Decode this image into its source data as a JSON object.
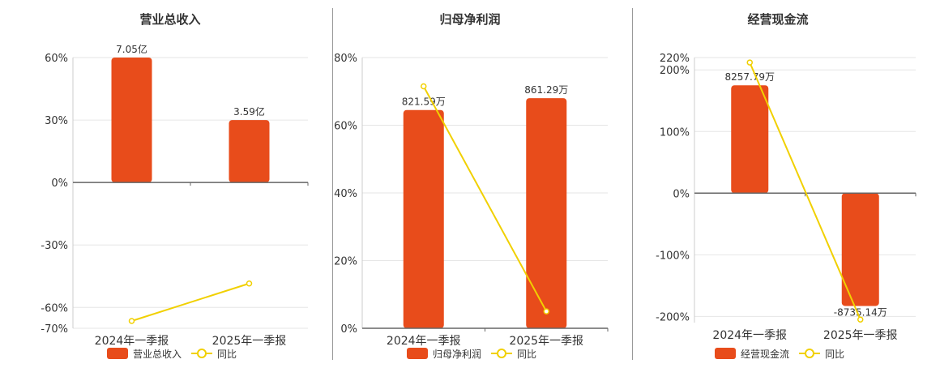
{
  "colors": {
    "bar": "#e84c1b",
    "line": "#f1d000",
    "grid": "#e6e6e6",
    "axis": "#666666",
    "text": "#333333"
  },
  "chart_data": [
    {
      "type": "bar",
      "title": "营业总收入",
      "categories": [
        "2024年一季报",
        "2025年一季报"
      ],
      "ylim": [
        -0.7,
        0.6
      ],
      "yticks": [
        0.6,
        0.3,
        0,
        -0.3,
        -0.6,
        -0.7
      ],
      "ytick_labels": [
        "60%",
        "30%",
        "0%",
        "-30%",
        "-60%",
        "-70%"
      ],
      "series": [
        {
          "name": "营业总收入",
          "type": "bar",
          "values": [
            0.6,
            0.3
          ],
          "labels": [
            "7.05亿",
            "3.59亿"
          ]
        },
        {
          "name": "同比",
          "type": "line",
          "values": [
            -0.665,
            -0.485
          ]
        }
      ],
      "legend": "bottom",
      "grid": true
    },
    {
      "type": "bar",
      "title": "归母净利润",
      "categories": [
        "2024年一季报",
        "2025年一季报"
      ],
      "ylim": [
        0,
        0.8
      ],
      "yticks": [
        0.8,
        0.6,
        0.4,
        0.2,
        0
      ],
      "ytick_labels": [
        "80%",
        "60%",
        "40%",
        "20%",
        "0%"
      ],
      "series": [
        {
          "name": "归母净利润",
          "type": "bar",
          "values": [
            0.645,
            0.68
          ],
          "labels": [
            "821.59万",
            "861.29万"
          ]
        },
        {
          "name": "同比",
          "type": "line",
          "values": [
            0.715,
            0.05
          ]
        }
      ],
      "legend": "bottom",
      "grid": true
    },
    {
      "type": "bar",
      "title": "经营现金流",
      "categories": [
        "2024年一季报",
        "2025年一季报"
      ],
      "ylim": [
        -2.1,
        2.2
      ],
      "yticks": [
        2.2,
        2.0,
        1.0,
        0,
        -1.0,
        -2.0
      ],
      "ytick_labels": [
        "220%",
        "200%",
        "100%",
        "0%",
        "-100%",
        "-200%"
      ],
      "series": [
        {
          "name": "经营现金流",
          "type": "bar",
          "values": [
            1.75,
            -1.83
          ],
          "labels": [
            "8257.79万",
            "-8735.14万"
          ]
        },
        {
          "name": "同比",
          "type": "line",
          "values": [
            2.12,
            -2.05
          ]
        }
      ],
      "legend": "bottom",
      "grid": true
    }
  ]
}
